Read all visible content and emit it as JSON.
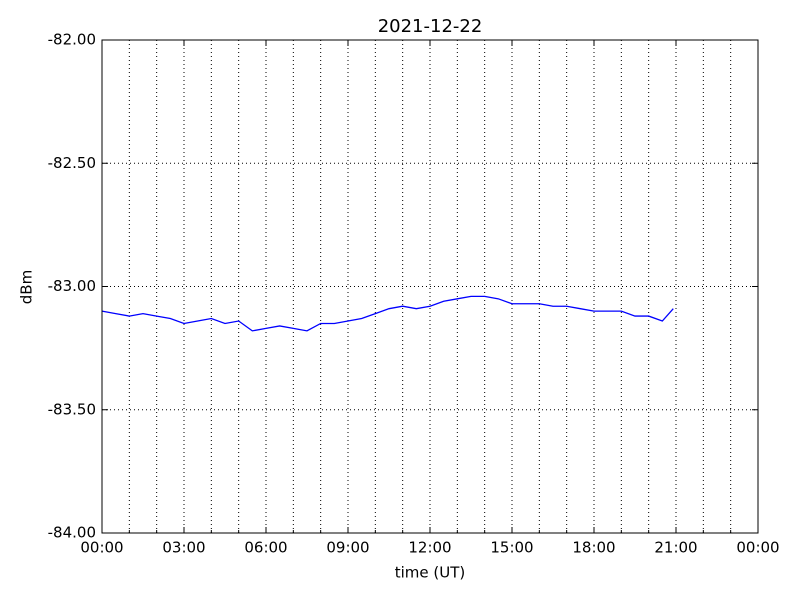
{
  "chart_data": {
    "type": "line",
    "title": "2021-12-22",
    "x_label": "time (UT)",
    "y_label": "dBm",
    "x": [
      0,
      0.5,
      1,
      1.5,
      2,
      2.5,
      3,
      3.5,
      4,
      4.5,
      5,
      5.5,
      6,
      6.5,
      7,
      7.5,
      8,
      8.5,
      9,
      9.5,
      10,
      10.5,
      11,
      11.5,
      12,
      12.5,
      13,
      13.5,
      14,
      14.5,
      15,
      15.5,
      16,
      16.5,
      17,
      17.5,
      18,
      18.5,
      19,
      19.5,
      20,
      20.5,
      20.9
    ],
    "series": [
      {
        "color": "#0000ff",
        "values": [
          -83.1,
          -83.11,
          -83.12,
          -83.11,
          -83.12,
          -83.13,
          -83.15,
          -83.14,
          -83.13,
          -83.15,
          -83.14,
          -83.18,
          -83.17,
          -83.16,
          -83.17,
          -83.18,
          -83.15,
          -83.15,
          -83.14,
          -83.13,
          -83.11,
          -83.09,
          -83.08,
          -83.09,
          -83.08,
          -83.06,
          -83.05,
          -83.04,
          -83.04,
          -83.05,
          -83.07,
          -83.07,
          -83.07,
          -83.08,
          -83.08,
          -83.09,
          -83.1,
          -83.1,
          -83.1,
          -83.12,
          -83.12,
          -83.14,
          -83.09
        ]
      }
    ],
    "xlim": [
      0,
      24
    ],
    "xticks": [
      {
        "value": 0,
        "label": "00:00"
      },
      {
        "value": 3,
        "label": "03:00"
      },
      {
        "value": 6,
        "label": "06:00"
      },
      {
        "value": 9,
        "label": "09:00"
      },
      {
        "value": 12,
        "label": "12:00"
      },
      {
        "value": 15,
        "label": "15:00"
      },
      {
        "value": 18,
        "label": "18:00"
      },
      {
        "value": 21,
        "label": "21:00"
      },
      {
        "value": 24,
        "label": "00:00"
      }
    ],
    "xminorticks": [
      1,
      2,
      4,
      5,
      7,
      8,
      10,
      11,
      13,
      14,
      16,
      17,
      19,
      20,
      22,
      23
    ],
    "ylim": [
      -84,
      -82
    ],
    "yticks": [
      {
        "value": -84,
        "label": "-84.00"
      },
      {
        "value": -83.5,
        "label": "-83.50"
      },
      {
        "value": -83,
        "label": "-83.00"
      },
      {
        "value": -82.5,
        "label": "-82.50"
      },
      {
        "value": -82,
        "label": "-82.00"
      }
    ],
    "grid": true
  }
}
